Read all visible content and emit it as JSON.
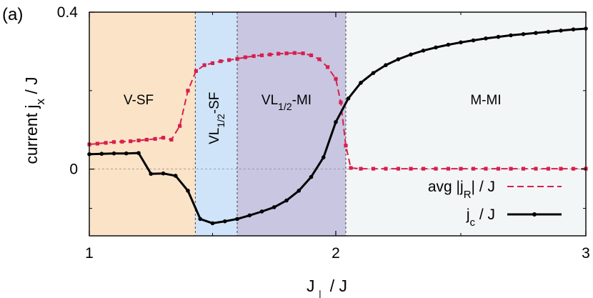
{
  "panel_label": "(a)",
  "chart_data": {
    "type": "line",
    "xlabel": {
      "main": "J",
      "sub": "⊥",
      "rest": " / J"
    },
    "ylabel": {
      "main": "current j",
      "sub": "x",
      "rest": " / J"
    },
    "xlim": [
      1,
      3
    ],
    "ylim": [
      -0.17,
      0.4
    ],
    "x_scale_note": "piecewise: 1-2 and 2-3 drawn over different widths",
    "x_ticks": [
      {
        "value": 1,
        "label": "1"
      },
      {
        "value": 2,
        "label": "2"
      },
      {
        "value": 3,
        "label": "3"
      }
    ],
    "y_ticks": [
      {
        "value": 0,
        "label": "0"
      },
      {
        "value": 0.4,
        "label": "0.4"
      }
    ],
    "regions": [
      {
        "from": 1.0,
        "to": 1.43,
        "color": "#fbe3c8",
        "label": {
          "main": "V-SF",
          "sub": "",
          "rest": ""
        },
        "label_x": 1.2,
        "label_y": 0.165,
        "rotated": false
      },
      {
        "from": 1.43,
        "to": 1.6,
        "color": "#cfe4f8",
        "label": {
          "main": "VL",
          "sub": "1/2",
          "rest": "-SF"
        },
        "label_x": 1.525,
        "label_y": 0.13,
        "rotated": true
      },
      {
        "from": 1.6,
        "to": 2.04,
        "color": "#c9c6e2",
        "label": {
          "main": "VL",
          "sub": "1/2",
          "rest": "-MI"
        },
        "label_x": 1.8,
        "label_y": 0.165,
        "rotated": false
      },
      {
        "from": 2.04,
        "to": 3.0,
        "color": "#f3f6f6",
        "label": {
          "main": "M-MI",
          "sub": "",
          "rest": ""
        },
        "label_x": 2.6,
        "label_y": 0.165,
        "rotated": false
      }
    ],
    "series": [
      {
        "name": {
          "main": "avg |j",
          "sub": "R",
          "rest": "| / J"
        },
        "color": "#d6204d",
        "style": "dashed",
        "marker": "square",
        "x": [
          1.0,
          1.033,
          1.067,
          1.1,
          1.133,
          1.167,
          1.2,
          1.233,
          1.267,
          1.3,
          1.333,
          1.367,
          1.4,
          1.433,
          1.467,
          1.5,
          1.533,
          1.567,
          1.6,
          1.633,
          1.667,
          1.7,
          1.733,
          1.767,
          1.8,
          1.833,
          1.867,
          1.9,
          1.933,
          1.967,
          2.0,
          2.02,
          2.04,
          2.06,
          2.1,
          2.15,
          2.2,
          2.25,
          2.3,
          2.35,
          2.4,
          2.45,
          2.5,
          2.55,
          2.6,
          2.65,
          2.7,
          2.75,
          2.8,
          2.85,
          2.9,
          2.95,
          3.0
        ],
        "y": [
          0.063,
          0.065,
          0.067,
          0.069,
          0.07,
          0.071,
          0.073,
          0.075,
          0.077,
          0.08,
          0.075,
          0.11,
          0.2,
          0.25,
          0.265,
          0.27,
          0.275,
          0.278,
          0.281,
          0.285,
          0.288,
          0.29,
          0.292,
          0.294,
          0.295,
          0.296,
          0.295,
          0.29,
          0.28,
          0.26,
          0.23,
          0.17,
          0.06,
          0.003,
          0.001,
          0.001,
          0.001,
          0.001,
          0.001,
          0.001,
          0.001,
          0.001,
          0.001,
          0.001,
          0.001,
          0.001,
          0.001,
          0.001,
          0.001,
          0.001,
          0.001,
          0.001,
          0.001
        ]
      },
      {
        "name": {
          "main": "j",
          "sub": "c",
          "rest": " / J"
        },
        "color": "#000000",
        "style": "solid",
        "marker": "circle",
        "x": [
          1.0,
          1.05,
          1.1,
          1.15,
          1.2,
          1.25,
          1.3,
          1.35,
          1.4,
          1.45,
          1.5,
          1.55,
          1.6,
          1.65,
          1.7,
          1.75,
          1.8,
          1.85,
          1.9,
          1.95,
          2.0,
          2.05,
          2.1,
          2.15,
          2.2,
          2.25,
          2.3,
          2.35,
          2.4,
          2.45,
          2.5,
          2.55,
          2.6,
          2.65,
          2.7,
          2.75,
          2.8,
          2.85,
          2.9,
          2.95,
          3.0
        ],
        "y": [
          0.038,
          0.039,
          0.04,
          0.04,
          0.041,
          -0.012,
          -0.011,
          -0.017,
          -0.055,
          -0.127,
          -0.138,
          -0.133,
          -0.127,
          -0.118,
          -0.108,
          -0.097,
          -0.08,
          -0.055,
          -0.02,
          0.03,
          0.12,
          0.18,
          0.22,
          0.245,
          0.265,
          0.28,
          0.292,
          0.302,
          0.31,
          0.317,
          0.323,
          0.328,
          0.333,
          0.337,
          0.341,
          0.344,
          0.347,
          0.35,
          0.353,
          0.356,
          0.358
        ]
      }
    ],
    "legend": {
      "position": "bottom-right"
    },
    "grid": false
  }
}
